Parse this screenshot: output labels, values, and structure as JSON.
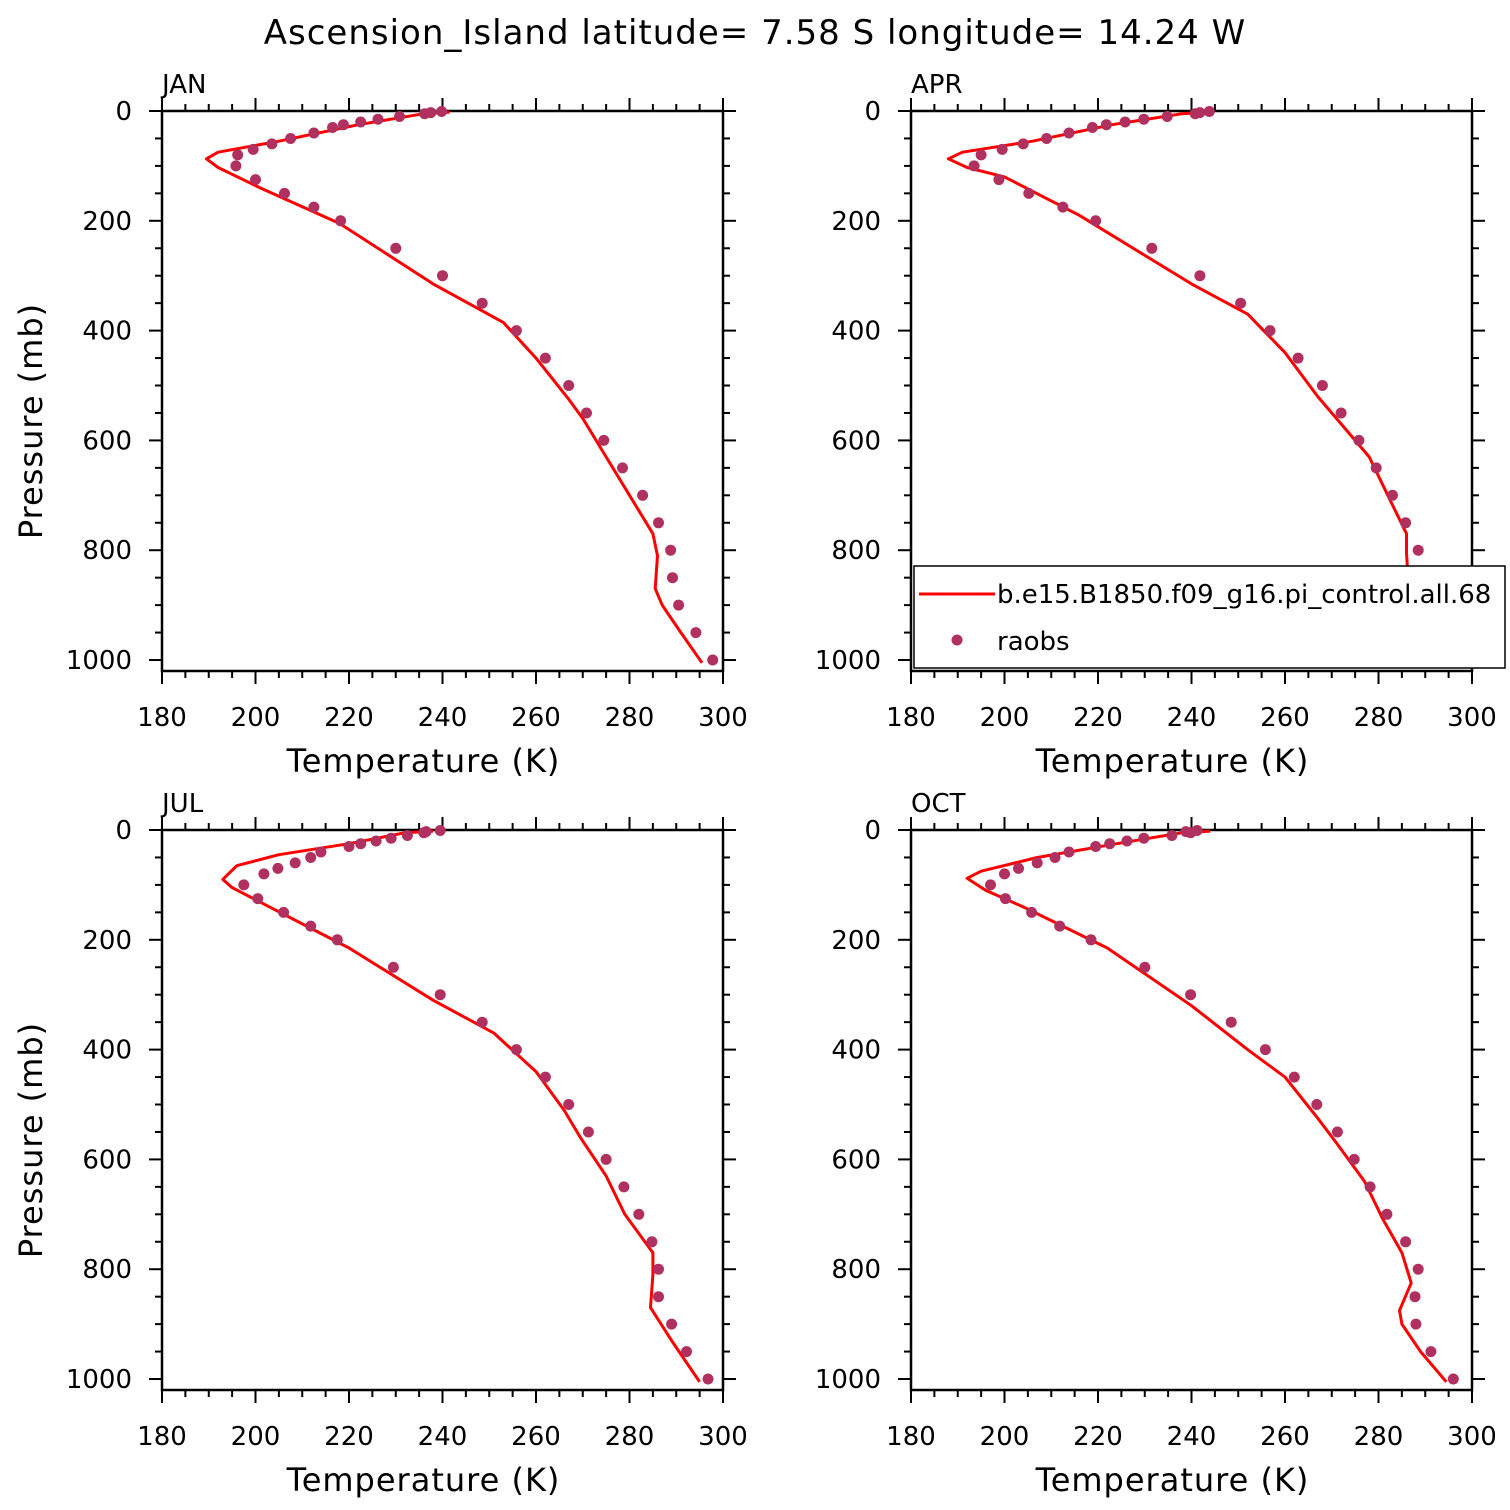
{
  "title": "Ascension_Island  latitude= 7.58 S longitude= 14.24 W",
  "colors": {
    "model": "#ff0000",
    "obs": "#b03060",
    "axes": "#000000"
  },
  "legend": {
    "location": "APR",
    "placement": "lower-right",
    "entries": [
      "b.e15.B1850.f09_g16.pi_control.all.68",
      "raobs"
    ]
  },
  "chart_data": [
    {
      "type": "scatter",
      "panel": "JAN",
      "title": "JAN",
      "xlabel": "Temperature (K)",
      "ylabel": "Pressure (mb)",
      "xlim": [
        180,
        300
      ],
      "ylim": [
        1020,
        0
      ],
      "y_inverted": true,
      "xticks": [
        "180",
        "200",
        "220",
        "240",
        "260",
        "280",
        "300"
      ],
      "yticks": [
        "0",
        "200",
        "400",
        "600",
        "800",
        "1000"
      ],
      "series": [
        {
          "name": "b.e15.B1850.f09_g16.pi_control.all.68",
          "style": "line",
          "t": [
            241.5,
            236.0,
            222.0,
            205.0,
            192.0,
            189.5,
            192.0,
            201.0,
            218.0,
            238.0,
            253.0,
            260.0,
            267.0,
            270.0,
            275.0,
            280.0,
            285.0,
            286.0,
            285.5,
            287.0,
            291.0,
            295.5
          ],
          "p": [
            2,
            5,
            25,
            55,
            75,
            87,
            103,
            140,
            205,
            315,
            385,
            450,
            525,
            560,
            630,
            700,
            770,
            810,
            870,
            900,
            950,
            1005
          ]
        },
        {
          "name": "raobs",
          "style": "markers",
          "t": [
            239.8,
            237.5,
            236.2,
            230.8,
            226.2,
            222.5,
            218.8,
            216.5,
            212.5,
            207.5,
            203.5,
            199.5,
            196.2,
            195.8,
            200.0,
            206.2,
            212.5,
            218.2,
            230.0,
            240.0,
            248.5,
            255.8,
            262.0,
            267.0,
            270.8,
            274.5,
            278.5,
            282.8,
            286.2,
            288.8,
            289.2,
            290.5,
            294.2,
            297.8
          ],
          "p": [
            1,
            3,
            5,
            10,
            15,
            20,
            25,
            30,
            40,
            50,
            60,
            70,
            80,
            100,
            125,
            150,
            175,
            200,
            250,
            300,
            350,
            400,
            450,
            500,
            550,
            600,
            650,
            700,
            750,
            800,
            850,
            900,
            950,
            1000
          ]
        }
      ]
    },
    {
      "type": "scatter",
      "panel": "APR",
      "title": "APR",
      "xlabel": "Temperature (K)",
      "ylabel": "",
      "xlim": [
        180,
        300
      ],
      "ylim": [
        1020,
        0
      ],
      "y_inverted": true,
      "xticks": [
        "180",
        "200",
        "220",
        "240",
        "260",
        "280",
        "300"
      ],
      "yticks": [
        "0",
        "200",
        "400",
        "600",
        "800",
        "1000"
      ],
      "series": [
        {
          "name": "b.e15.B1850.f09_g16.pi_control.all.68",
          "style": "line",
          "t": [
            244.0,
            238.0,
            223.0,
            206.0,
            191.0,
            188.0,
            192.0,
            200.0,
            216.0,
            240.0,
            252.0,
            260.0,
            267.0,
            272.0,
            278.0,
            282.0,
            286.0,
            286.0,
            286.5,
            289.0,
            293.0,
            298.5
          ],
          "p": [
            2,
            5,
            25,
            55,
            75,
            87,
            103,
            120,
            190,
            315,
            370,
            440,
            520,
            570,
            630,
            700,
            770,
            805,
            875,
            920,
            960,
            1005
          ]
        },
        {
          "name": "raobs",
          "style": "markers",
          "t": [
            243.8,
            241.8,
            240.8,
            234.8,
            229.8,
            225.8,
            221.8,
            218.8,
            213.8,
            209.0,
            204.0,
            199.5,
            195.0,
            193.5,
            198.8,
            205.2,
            212.5,
            219.5,
            231.5,
            241.8,
            250.5,
            256.8,
            262.8,
            268.0,
            272.0,
            275.8,
            279.5,
            283.0,
            285.8,
            288.5,
            289.8,
            292.0,
            295.5,
            299.8
          ],
          "p": [
            1,
            3,
            5,
            10,
            15,
            20,
            25,
            30,
            40,
            50,
            60,
            70,
            80,
            100,
            125,
            150,
            175,
            200,
            250,
            300,
            350,
            400,
            450,
            500,
            550,
            600,
            650,
            700,
            750,
            800,
            850,
            900,
            950,
            1000
          ]
        }
      ]
    },
    {
      "type": "scatter",
      "panel": "JUL",
      "title": "JUL",
      "xlabel": "Temperature (K)",
      "ylabel": "Pressure (mb)",
      "xlim": [
        180,
        300
      ],
      "ylim": [
        1020,
        0
      ],
      "y_inverted": true,
      "xticks": [
        "180",
        "200",
        "220",
        "240",
        "260",
        "280",
        "300"
      ],
      "yticks": [
        "0",
        "200",
        "400",
        "600",
        "800",
        "1000"
      ],
      "series": [
        {
          "name": "b.e15.B1850.f09_g16.pi_control.all.68",
          "style": "line",
          "t": [
            238.0,
            232.0,
            220.0,
            205.0,
            196.0,
            193.0,
            195.0,
            203.0,
            220.0,
            238.0,
            251.0,
            260.0,
            266.0,
            269.5,
            275.0,
            279.0,
            285.0,
            285.0,
            284.5,
            284.5,
            289.0,
            295.0
          ],
          "p": [
            2,
            5,
            25,
            45,
            65,
            90,
            105,
            140,
            215,
            310,
            370,
            440,
            510,
            560,
            630,
            700,
            770,
            810,
            870,
            870,
            930,
            1005
          ]
        },
        {
          "name": "raobs",
          "style": "markers",
          "t": [
            239.5,
            236.5,
            236.0,
            232.5,
            229.0,
            225.8,
            222.5,
            220.0,
            214.0,
            211.8,
            208.5,
            204.8,
            201.8,
            197.5,
            200.5,
            206.0,
            211.8,
            217.5,
            229.5,
            239.5,
            248.5,
            255.8,
            262.0,
            267.0,
            271.2,
            275.0,
            278.8,
            282.0,
            284.8,
            286.2,
            286.2,
            289.0,
            292.2,
            296.8
          ],
          "p": [
            1,
            3,
            5,
            10,
            15,
            20,
            25,
            30,
            40,
            50,
            60,
            70,
            80,
            100,
            125,
            150,
            175,
            200,
            250,
            300,
            350,
            400,
            450,
            500,
            550,
            600,
            650,
            700,
            750,
            800,
            850,
            900,
            950,
            1000
          ]
        }
      ]
    },
    {
      "type": "scatter",
      "panel": "OCT",
      "title": "OCT",
      "xlabel": "Temperature (K)",
      "ylabel": "",
      "xlim": [
        180,
        300
      ],
      "ylim": [
        1020,
        0
      ],
      "y_inverted": true,
      "xticks": [
        "180",
        "200",
        "220",
        "240",
        "260",
        "280",
        "300"
      ],
      "yticks": [
        "0",
        "200",
        "400",
        "600",
        "800",
        "1000"
      ],
      "series": [
        {
          "name": "b.e15.B1850.f09_g16.pi_control.all.68",
          "style": "line",
          "t": [
            244.0,
            238.0,
            224.0,
            207.0,
            195.0,
            192.0,
            196.0,
            204.0,
            222.0,
            240.0,
            252.0,
            260.0,
            267.0,
            271.0,
            277.0,
            281.0,
            285.0,
            287.0,
            284.5,
            285.0,
            289.0,
            294.5
          ],
          "p": [
            2,
            5,
            25,
            50,
            75,
            88,
            110,
            140,
            215,
            320,
            400,
            450,
            525,
            570,
            640,
            710,
            770,
            825,
            875,
            900,
            950,
            1005
          ]
        },
        {
          "name": "raobs",
          "style": "markers",
          "t": [
            241.2,
            238.8,
            239.8,
            235.8,
            229.8,
            226.2,
            222.5,
            219.5,
            213.8,
            210.8,
            207.0,
            203.0,
            200.0,
            197.0,
            200.2,
            205.8,
            211.8,
            218.5,
            230.0,
            239.8,
            248.5,
            255.8,
            262.0,
            266.8,
            271.2,
            274.8,
            278.2,
            281.8,
            285.8,
            288.5,
            287.8,
            288.0,
            291.2,
            296.0
          ],
          "p": [
            1,
            3,
            5,
            10,
            15,
            20,
            25,
            30,
            40,
            50,
            60,
            70,
            80,
            100,
            125,
            150,
            175,
            200,
            250,
            300,
            350,
            400,
            450,
            500,
            550,
            600,
            650,
            700,
            750,
            800,
            850,
            900,
            950,
            1000
          ]
        }
      ]
    }
  ]
}
